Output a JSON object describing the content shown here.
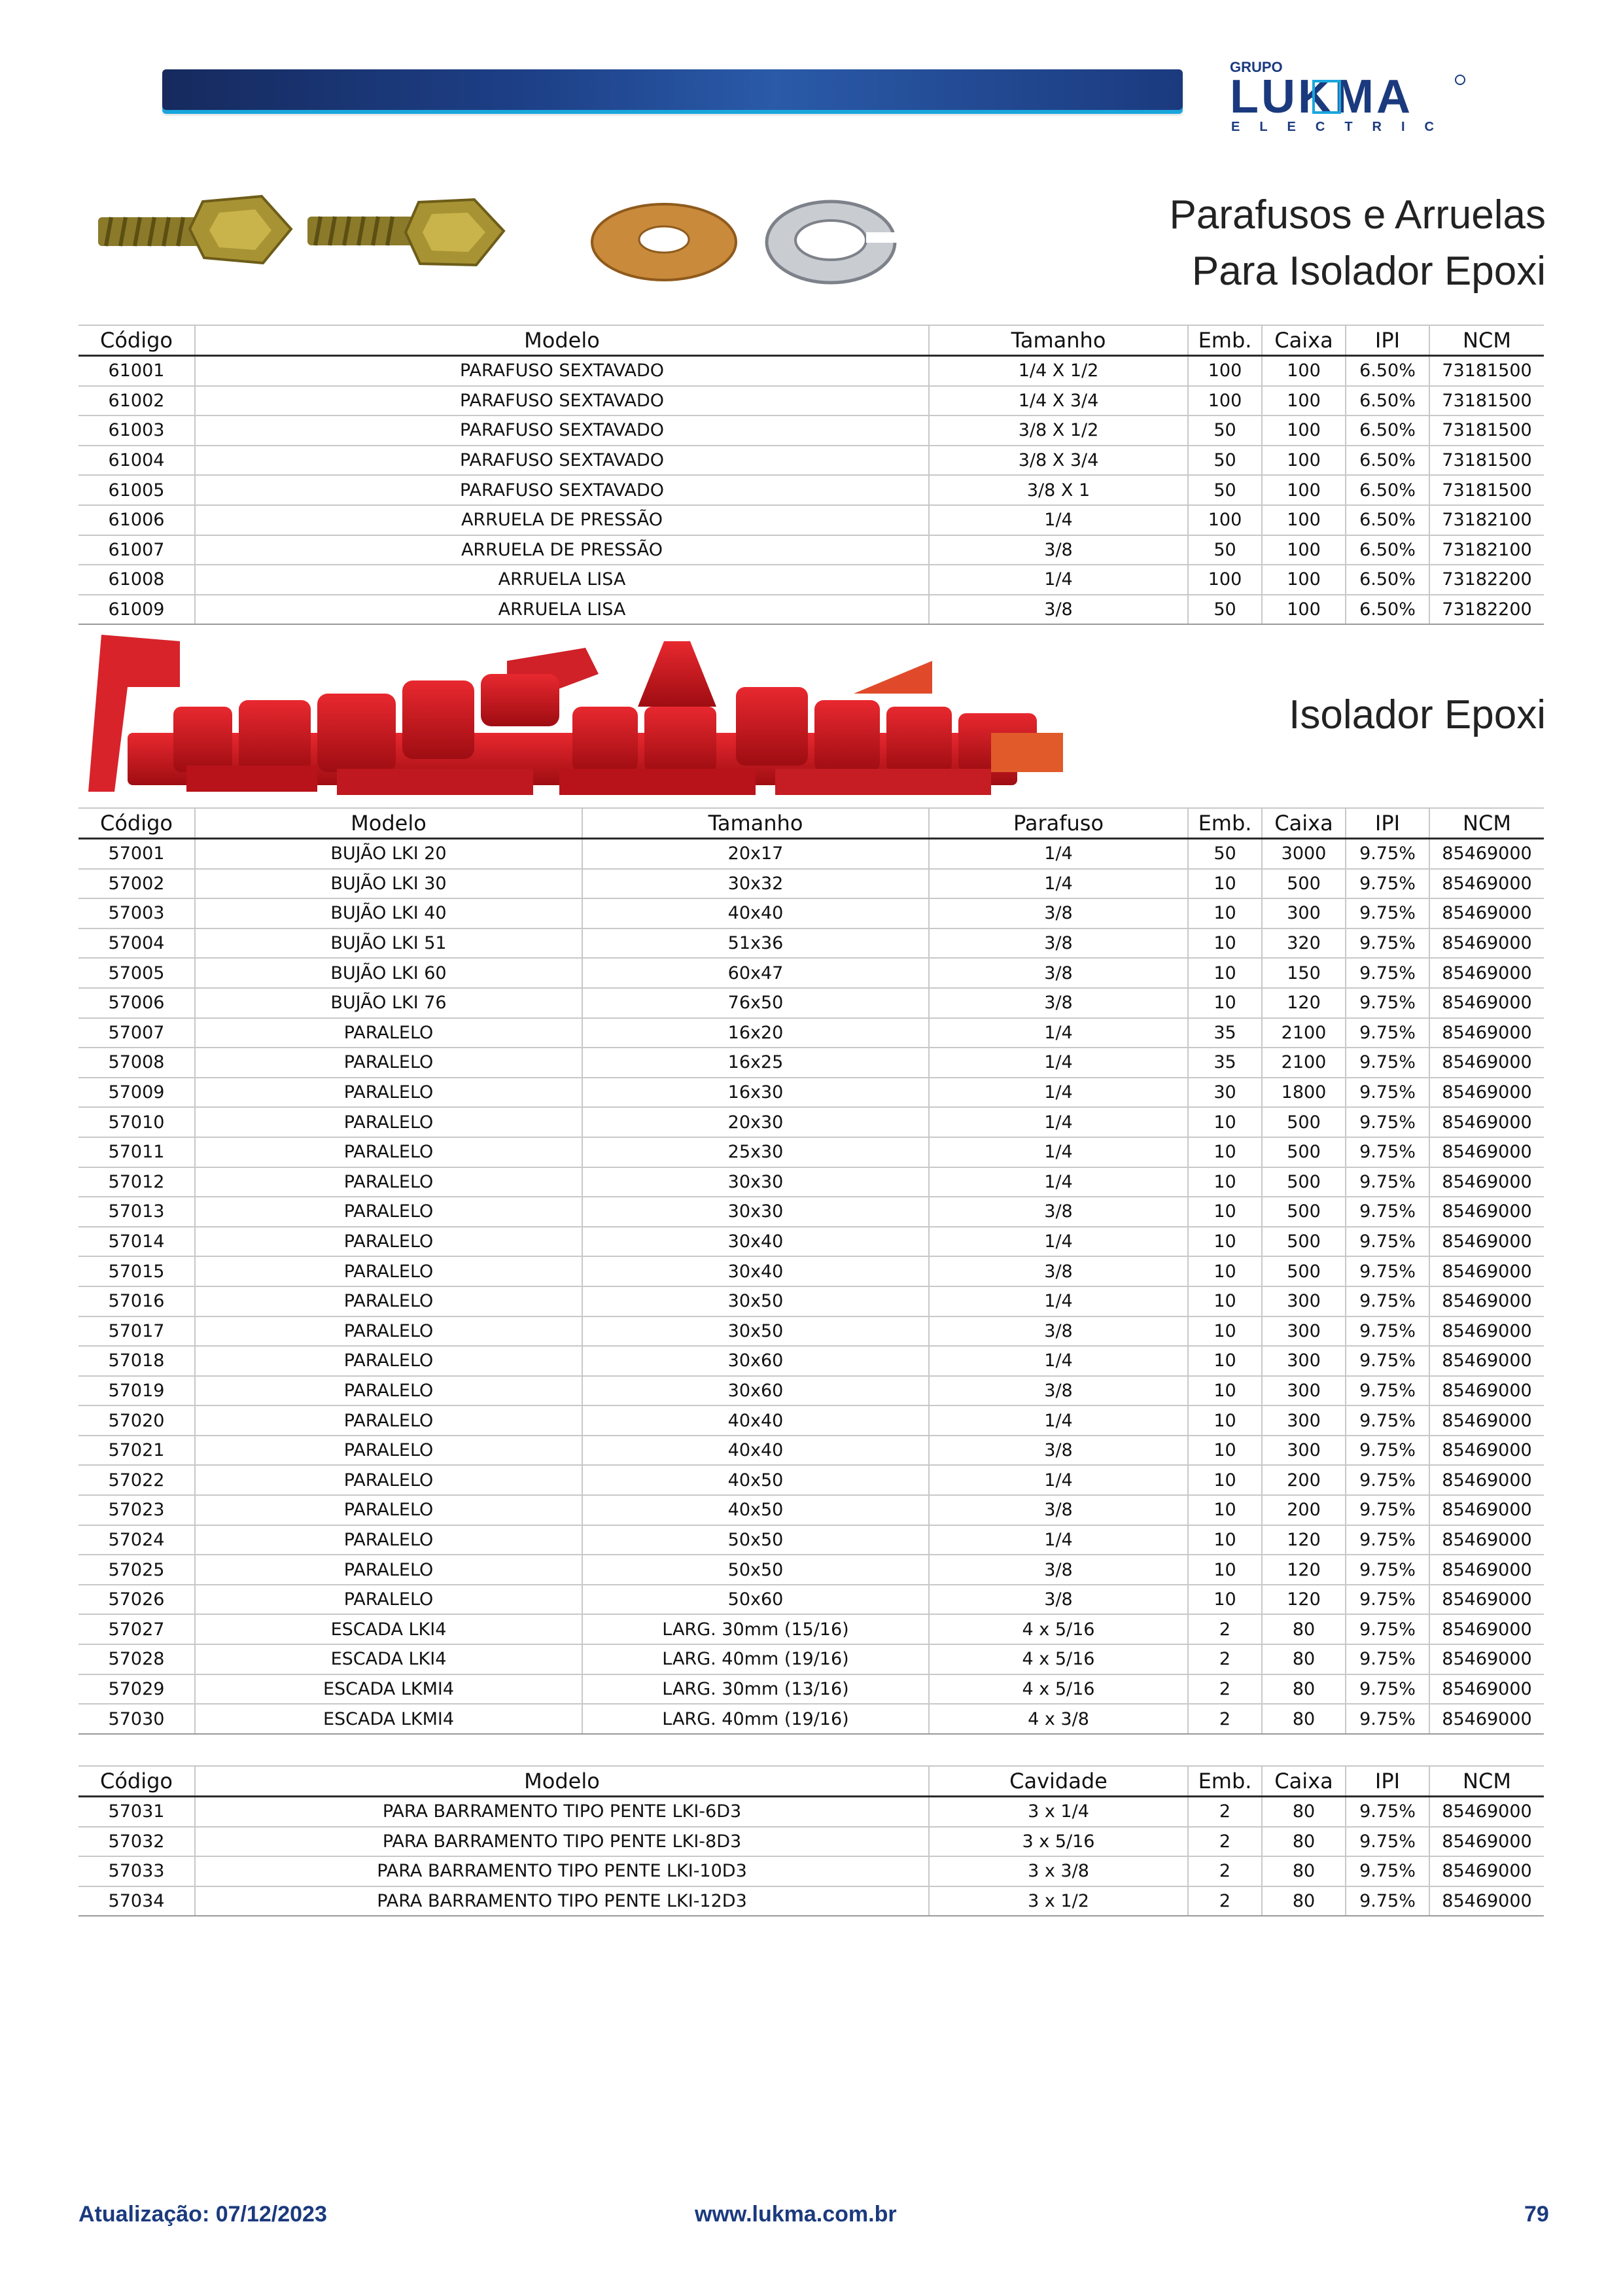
{
  "brand": {
    "top": "GRUPO",
    "name": "LUKMA",
    "sub": "ELECTRIC"
  },
  "section1": {
    "title_line1": "Parafusos e Arruelas",
    "title_line2": "Para Isolador Epoxi",
    "headers": [
      "Código",
      "Modelo",
      "Tamanho",
      "Emb.",
      "Caixa",
      "IPI",
      "NCM"
    ],
    "rows": [
      [
        "61001",
        "PARAFUSO SEXTAVADO",
        "1/4 X 1/2",
        "100",
        "100",
        "6.50%",
        "73181500"
      ],
      [
        "61002",
        "PARAFUSO SEXTAVADO",
        "1/4 X 3/4",
        "100",
        "100",
        "6.50%",
        "73181500"
      ],
      [
        "61003",
        "PARAFUSO SEXTAVADO",
        "3/8 X 1/2",
        "50",
        "100",
        "6.50%",
        "73181500"
      ],
      [
        "61004",
        "PARAFUSO SEXTAVADO",
        "3/8 X 3/4",
        "50",
        "100",
        "6.50%",
        "73181500"
      ],
      [
        "61005",
        "PARAFUSO SEXTAVADO",
        "3/8 X 1",
        "50",
        "100",
        "6.50%",
        "73181500"
      ],
      [
        "61006",
        "ARRUELA DE PRESSÃO",
        "1/4",
        "100",
        "100",
        "6.50%",
        "73182100"
      ],
      [
        "61007",
        "ARRUELA DE PRESSÃO",
        "3/8",
        "50",
        "100",
        "6.50%",
        "73182100"
      ],
      [
        "61008",
        "ARRUELA LISA",
        "1/4",
        "100",
        "100",
        "6.50%",
        "73182200"
      ],
      [
        "61009",
        "ARRUELA LISA",
        "3/8",
        "50",
        "100",
        "6.50%",
        "73182200"
      ]
    ]
  },
  "section2": {
    "title": "Isolador Epoxi",
    "headers": [
      "Código",
      "Modelo",
      "Tamanho",
      "Parafuso",
      "Emb.",
      "Caixa",
      "IPI",
      "NCM"
    ],
    "rows": [
      [
        "57001",
        "BUJÃO LKI 20",
        "20x17",
        "1/4",
        "50",
        "3000",
        "9.75%",
        "85469000"
      ],
      [
        "57002",
        "BUJÃO LKI 30",
        "30x32",
        "1/4",
        "10",
        "500",
        "9.75%",
        "85469000"
      ],
      [
        "57003",
        "BUJÃO LKI 40",
        "40x40",
        "3/8",
        "10",
        "300",
        "9.75%",
        "85469000"
      ],
      [
        "57004",
        "BUJÃO LKI 51",
        "51x36",
        "3/8",
        "10",
        "320",
        "9.75%",
        "85469000"
      ],
      [
        "57005",
        "BUJÃO LKI 60",
        "60x47",
        "3/8",
        "10",
        "150",
        "9.75%",
        "85469000"
      ],
      [
        "57006",
        "BUJÃO LKI 76",
        "76x50",
        "3/8",
        "10",
        "120",
        "9.75%",
        "85469000"
      ],
      [
        "57007",
        "PARALELO",
        "16x20",
        "1/4",
        "35",
        "2100",
        "9.75%",
        "85469000"
      ],
      [
        "57008",
        "PARALELO",
        "16x25",
        "1/4",
        "35",
        "2100",
        "9.75%",
        "85469000"
      ],
      [
        "57009",
        "PARALELO",
        "16x30",
        "1/4",
        "30",
        "1800",
        "9.75%",
        "85469000"
      ],
      [
        "57010",
        "PARALELO",
        "20x30",
        "1/4",
        "10",
        "500",
        "9.75%",
        "85469000"
      ],
      [
        "57011",
        "PARALELO",
        "25x30",
        "1/4",
        "10",
        "500",
        "9.75%",
        "85469000"
      ],
      [
        "57012",
        "PARALELO",
        "30x30",
        "1/4",
        "10",
        "500",
        "9.75%",
        "85469000"
      ],
      [
        "57013",
        "PARALELO",
        "30x30",
        "3/8",
        "10",
        "500",
        "9.75%",
        "85469000"
      ],
      [
        "57014",
        "PARALELO",
        "30x40",
        "1/4",
        "10",
        "500",
        "9.75%",
        "85469000"
      ],
      [
        "57015",
        "PARALELO",
        "30x40",
        "3/8",
        "10",
        "500",
        "9.75%",
        "85469000"
      ],
      [
        "57016",
        "PARALELO",
        "30x50",
        "1/4",
        "10",
        "300",
        "9.75%",
        "85469000"
      ],
      [
        "57017",
        "PARALELO",
        "30x50",
        "3/8",
        "10",
        "300",
        "9.75%",
        "85469000"
      ],
      [
        "57018",
        "PARALELO",
        "30x60",
        "1/4",
        "10",
        "300",
        "9.75%",
        "85469000"
      ],
      [
        "57019",
        "PARALELO",
        "30x60",
        "3/8",
        "10",
        "300",
        "9.75%",
        "85469000"
      ],
      [
        "57020",
        "PARALELO",
        "40x40",
        "1/4",
        "10",
        "300",
        "9.75%",
        "85469000"
      ],
      [
        "57021",
        "PARALELO",
        "40x40",
        "3/8",
        "10",
        "300",
        "9.75%",
        "85469000"
      ],
      [
        "57022",
        "PARALELO",
        "40x50",
        "1/4",
        "10",
        "200",
        "9.75%",
        "85469000"
      ],
      [
        "57023",
        "PARALELO",
        "40x50",
        "3/8",
        "10",
        "200",
        "9.75%",
        "85469000"
      ],
      [
        "57024",
        "PARALELO",
        "50x50",
        "1/4",
        "10",
        "120",
        "9.75%",
        "85469000"
      ],
      [
        "57025",
        "PARALELO",
        "50x50",
        "3/8",
        "10",
        "120",
        "9.75%",
        "85469000"
      ],
      [
        "57026",
        "PARALELO",
        "50x60",
        "3/8",
        "10",
        "120",
        "9.75%",
        "85469000"
      ],
      [
        "57027",
        "ESCADA LKI4",
        "LARG. 30mm (15/16)",
        "4 x 5/16",
        "2",
        "80",
        "9.75%",
        "85469000"
      ],
      [
        "57028",
        "ESCADA LKI4",
        "LARG. 40mm (19/16)",
        "4 x 5/16",
        "2",
        "80",
        "9.75%",
        "85469000"
      ],
      [
        "57029",
        "ESCADA LKMI4",
        "LARG. 30mm (13/16)",
        "4 x 5/16",
        "2",
        "80",
        "9.75%",
        "85469000"
      ],
      [
        "57030",
        "ESCADA LKMI4",
        "LARG. 40mm (19/16)",
        "4 x 3/8",
        "2",
        "80",
        "9.75%",
        "85469000"
      ]
    ]
  },
  "section3": {
    "headers": [
      "Código",
      "Modelo",
      "Cavidade",
      "Emb.",
      "Caixa",
      "IPI",
      "NCM"
    ],
    "rows": [
      [
        "57031",
        "PARA BARRAMENTO TIPO PENTE LKI-6D3",
        "3 x 1/4",
        "2",
        "80",
        "9.75%",
        "85469000"
      ],
      [
        "57032",
        "PARA BARRAMENTO TIPO PENTE LKI-8D3",
        "3 x 5/16",
        "2",
        "80",
        "9.75%",
        "85469000"
      ],
      [
        "57033",
        "PARA BARRAMENTO TIPO PENTE LKI-10D3",
        "3 x 3/8",
        "2",
        "80",
        "9.75%",
        "85469000"
      ],
      [
        "57034",
        "PARA BARRAMENTO TIPO PENTE LKI-12D3",
        "3 x 1/2",
        "2",
        "80",
        "9.75%",
        "85469000"
      ]
    ]
  },
  "footer": {
    "date": "Atualização: 07/12/2023",
    "url": "www.lukma.com.br",
    "page": "79"
  },
  "colors": {
    "brand_blue": "#1b3a7e",
    "accent_cyan": "#19a6dd",
    "epoxi_red": "#d0141c"
  },
  "icons": [
    "hex-bolt-icon",
    "flat-washer-icon",
    "lock-washer-icon",
    "epoxi-insulators-photo"
  ]
}
